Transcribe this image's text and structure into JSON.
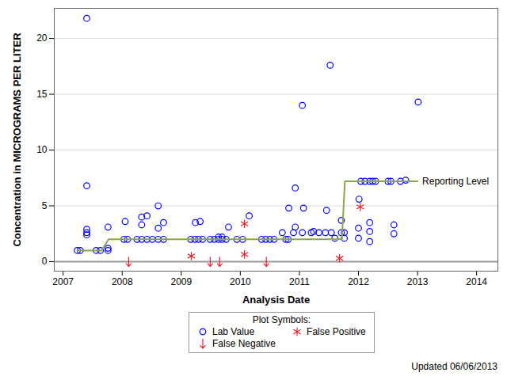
{
  "chart_data": {
    "type": "scatter",
    "x_label": "Analysis Date",
    "y_label": "Concentration in MICROGRAMS PER LITER",
    "xlim": [
      2006.85,
      2014.36
    ],
    "xticks": [
      2007,
      2008,
      2009,
      2010,
      2011,
      2012,
      2013,
      2014
    ],
    "ylim": [
      -0.85,
      22.7
    ],
    "yticks": [
      0,
      5,
      10,
      15,
      20
    ],
    "grid": true,
    "baseline": 0,
    "legend": "bottom",
    "legend_title": "Plot Symbols:",
    "annotations": [
      "Updated 06/06/2013"
    ],
    "series": [
      {
        "name": "Lab Value",
        "type": "scatter",
        "marker": "circle",
        "color": "#0000ff",
        "x": [
          2007.24,
          2007.29,
          2007.4,
          2007.4,
          2007.4,
          2007.4,
          2007.4,
          2007.56,
          2007.63,
          2007.76,
          2007.76,
          2007.76,
          2008.03,
          2008.05,
          2008.09,
          2008.25,
          2008.33,
          2008.33,
          2008.33,
          2008.42,
          2008.42,
          2008.51,
          2008.61,
          2008.61,
          2008.61,
          2008.7,
          2008.7,
          2009.16,
          2009.23,
          2009.24,
          2009.29,
          2009.32,
          2009.36,
          2009.49,
          2009.56,
          2009.63,
          2009.63,
          2009.69,
          2009.69,
          2009.76,
          2009.8,
          2009.94,
          2010.04,
          2010.15,
          2010.36,
          2010.43,
          2010.5,
          2010.57,
          2010.71,
          2010.77,
          2010.81,
          2010.82,
          2010.9,
          2010.93,
          2010.93,
          2011.05,
          2011.05,
          2011.07,
          2011.2,
          2011.24,
          2011.33,
          2011.44,
          2011.46,
          2011.52,
          2011.54,
          2011.6,
          2011.71,
          2011.71,
          2011.76,
          2011.76,
          2012.0,
          2012.0,
          2012.01,
          2012.04,
          2012.11,
          2012.19,
          2012.19,
          2012.19,
          2012.19,
          2012.24,
          2012.29,
          2012.5,
          2012.55,
          2012.6,
          2012.6,
          2012.71,
          2012.8,
          2013.01
        ],
        "values": [
          1.0,
          1.0,
          21.8,
          6.8,
          2.9,
          2.6,
          2.4,
          1.0,
          1.0,
          3.1,
          1.2,
          1.0,
          2.0,
          3.6,
          2.0,
          2.0,
          2.0,
          3.3,
          4.0,
          4.1,
          2.0,
          2.0,
          2.0,
          3.0,
          5.0,
          2.0,
          3.5,
          2.0,
          2.0,
          3.5,
          2.0,
          3.6,
          2.0,
          2.0,
          2.0,
          2.0,
          2.2,
          2.0,
          2.2,
          2.0,
          3.1,
          2.0,
          2.0,
          4.1,
          2.0,
          2.0,
          2.0,
          2.0,
          2.6,
          2.0,
          2.0,
          4.8,
          2.6,
          3.1,
          6.6,
          2.6,
          14.0,
          4.8,
          2.6,
          2.7,
          2.6,
          2.6,
          4.6,
          17.6,
          2.6,
          2.1,
          2.6,
          3.7,
          2.1,
          2.6,
          3.0,
          2.1,
          5.6,
          7.2,
          7.2,
          7.2,
          3.5,
          2.7,
          1.8,
          7.2,
          7.2,
          7.2,
          7.2,
          3.3,
          2.5,
          7.2,
          7.3,
          14.3
        ]
      },
      {
        "name": "False Positive",
        "type": "scatter",
        "marker": "asterisk",
        "color": "#e8202a",
        "x": [
          2009.17,
          2010.07,
          2010.07,
          2011.68,
          2012.03
        ],
        "values": [
          0.5,
          3.4,
          0.65,
          0.3,
          4.9
        ]
      },
      {
        "name": "False Negative",
        "type": "scatter",
        "marker": "arrow_down",
        "color": "#e8202a",
        "x": [
          2008.11,
          2009.49,
          2009.65,
          2010.44
        ],
        "values": [
          0,
          0,
          0,
          0
        ]
      },
      {
        "name": "Reporting Level",
        "type": "line",
        "color": "#8aa64a",
        "x": [
          2007.24,
          2007.65,
          2007.77,
          2011.72,
          2011.77,
          2013.0
        ],
        "values": [
          1,
          1,
          2,
          2,
          7.2,
          7.2
        ]
      }
    ]
  }
}
